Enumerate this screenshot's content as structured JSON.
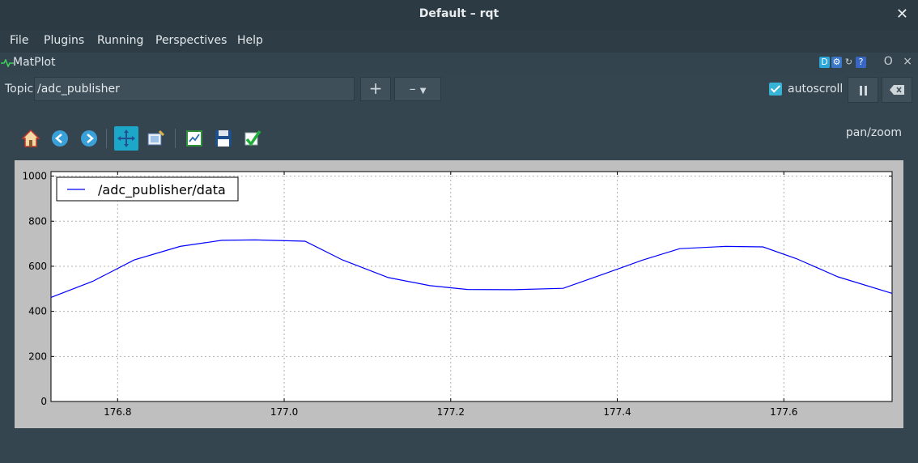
{
  "window": {
    "title": "Default – rqt"
  },
  "menu": [
    "File",
    "Plugins",
    "Running",
    "Perspectives",
    "Help"
  ],
  "plugin": {
    "name": "MatPlot",
    "window_controls": "O ×"
  },
  "topic": {
    "label": "Topic",
    "value": "/adc_publisher",
    "add_label": "+",
    "remove_label": "–"
  },
  "autoscroll": {
    "label": "autoscroll",
    "checked": true
  },
  "toolbar": {
    "mode_label": "pan/zoom",
    "tools": [
      "home-icon",
      "back-icon",
      "forward-icon",
      "pan-icon",
      "zoom-icon",
      "subplots-icon",
      "save-icon",
      "edit-curves-icon"
    ]
  },
  "chart_data": {
    "type": "line",
    "title": "",
    "xlabel": "",
    "ylabel": "",
    "xlim": [
      176.72,
      177.73
    ],
    "ylim": [
      0,
      1020
    ],
    "xticks": [
      176.8,
      177.0,
      177.2,
      177.4,
      177.6
    ],
    "xtick_labels": [
      "176.8",
      "177.0",
      "177.2",
      "177.4",
      "177.6"
    ],
    "yticks": [
      0,
      200,
      400,
      600,
      800,
      1000
    ],
    "ytick_labels": [
      "0",
      "200",
      "400",
      "600",
      "800",
      "1000"
    ],
    "grid": true,
    "legend": "top-left",
    "series": [
      {
        "name": "/adc_publisher/data",
        "color": "#0000ff",
        "x": [
          176.72,
          176.77,
          176.82,
          176.875,
          176.925,
          176.965,
          177.025,
          177.07,
          177.125,
          177.175,
          177.22,
          177.275,
          177.335,
          177.385,
          177.43,
          177.475,
          177.53,
          177.575,
          177.615,
          177.665,
          177.73
        ],
        "y": [
          462,
          533,
          628,
          688,
          715,
          717,
          711,
          628,
          550,
          514,
          497,
          496,
          502,
          567,
          627,
          678,
          688,
          686,
          634,
          553,
          480
        ]
      }
    ]
  }
}
